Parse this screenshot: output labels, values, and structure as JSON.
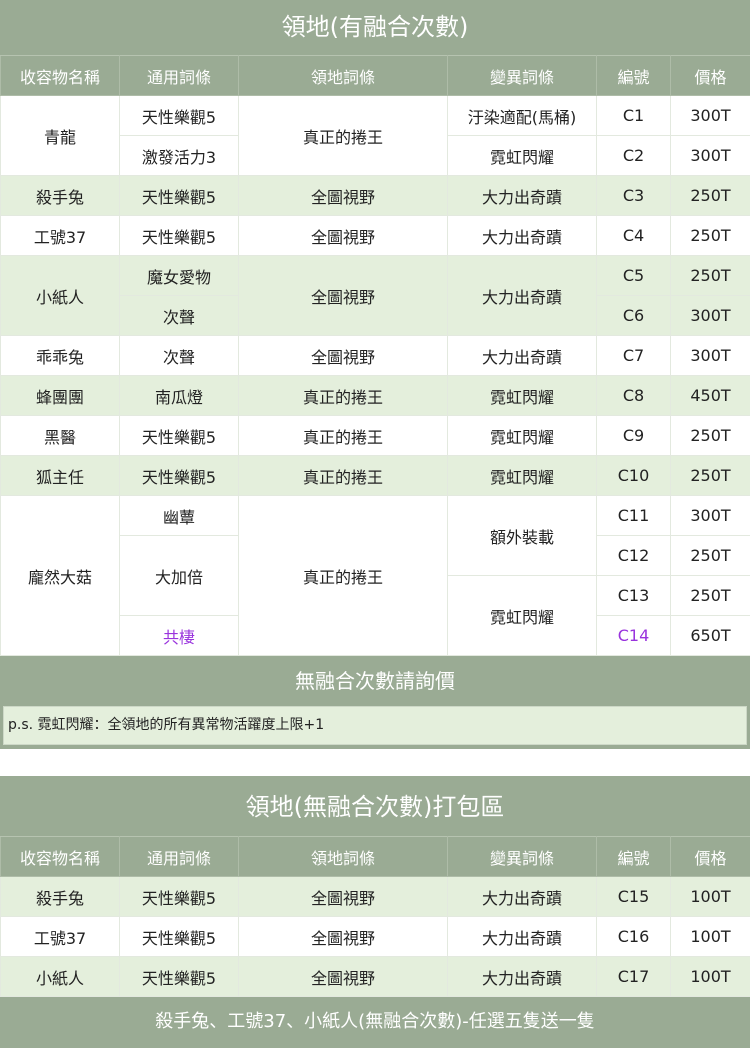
{
  "section1": {
    "title": "領地(有融合次數)",
    "headers": [
      "收容物名稱",
      "通用詞條",
      "領地詞條",
      "變異詞條",
      "編號",
      "價格"
    ],
    "rows": [
      {
        "name": "青龍",
        "general": "天性樂觀5",
        "territory": "真正的捲王",
        "mutation": "汙染適配(馬桶)",
        "code": "C1",
        "price": "300T"
      },
      {
        "general": "激發活力3",
        "mutation": "霓虹閃耀",
        "code": "C2",
        "price": "300T"
      },
      {
        "name": "殺手兔",
        "general": "天性樂觀5",
        "territory": "全圖視野",
        "mutation": "大力出奇蹟",
        "code": "C3",
        "price": "250T"
      },
      {
        "name": "工號37",
        "general": "天性樂觀5",
        "territory": "全圖視野",
        "mutation": "大力出奇蹟",
        "code": "C4",
        "price": "250T"
      },
      {
        "name": "小紙人",
        "general": "魔女愛物",
        "territory": "全圖視野",
        "mutation": "大力出奇蹟",
        "code": "C5",
        "price": "250T"
      },
      {
        "general": "次聲",
        "code": "C6",
        "price": "300T"
      },
      {
        "name": "乖乖兔",
        "general": "次聲",
        "territory": "全圖視野",
        "mutation": "大力出奇蹟",
        "code": "C7",
        "price": "300T"
      },
      {
        "name": "蜂團團",
        "general": "南瓜燈",
        "territory": "真正的捲王",
        "mutation": "霓虹閃耀",
        "code": "C8",
        "price": "450T"
      },
      {
        "name": "黑醫",
        "general": "天性樂觀5",
        "territory": "真正的捲王",
        "mutation": "霓虹閃耀",
        "code": "C9",
        "price": "250T"
      },
      {
        "name": "狐主任",
        "general": "天性樂觀5",
        "territory": "真正的捲王",
        "mutation": "霓虹閃耀",
        "code": "C10",
        "price": "250T"
      },
      {
        "name": "龐然大菇",
        "general": "幽蕈",
        "territory": "真正的捲王",
        "mutation": "額外裝載",
        "code": "C11",
        "price": "300T"
      },
      {
        "general": "大加倍",
        "code": "C12",
        "price": "250T"
      },
      {
        "mutation": "霓虹閃耀",
        "code": "C13",
        "price": "250T"
      },
      {
        "general": "共棲",
        "code": "C14",
        "price": "650T"
      }
    ],
    "inquiry": "無融合次數請詢價",
    "note": "p.s. 霓虹閃耀：全領地的所有異常物活躍度上限+1"
  },
  "section2": {
    "title": "領地(無融合次數)打包區",
    "headers": [
      "收容物名稱",
      "通用詞條",
      "領地詞條",
      "變異詞條",
      "編號",
      "價格"
    ],
    "rows": [
      {
        "name": "殺手兔",
        "general": "天性樂觀5",
        "territory": "全圖視野",
        "mutation": "大力出奇蹟",
        "code": "C15",
        "price": "100T"
      },
      {
        "name": "工號37",
        "general": "天性樂觀5",
        "territory": "全圖視野",
        "mutation": "大力出奇蹟",
        "code": "C16",
        "price": "100T"
      },
      {
        "name": "小紙人",
        "general": "天性樂觀5",
        "territory": "全圖視野",
        "mutation": "大力出奇蹟",
        "code": "C17",
        "price": "100T"
      }
    ],
    "footer": "殺手兔、工號37、小紙人(無融合次數)-任選五隻送一隻"
  },
  "colors": {
    "band": "#9aab94",
    "row_alt": "#e4efdc",
    "highlight": "#9933dd"
  }
}
